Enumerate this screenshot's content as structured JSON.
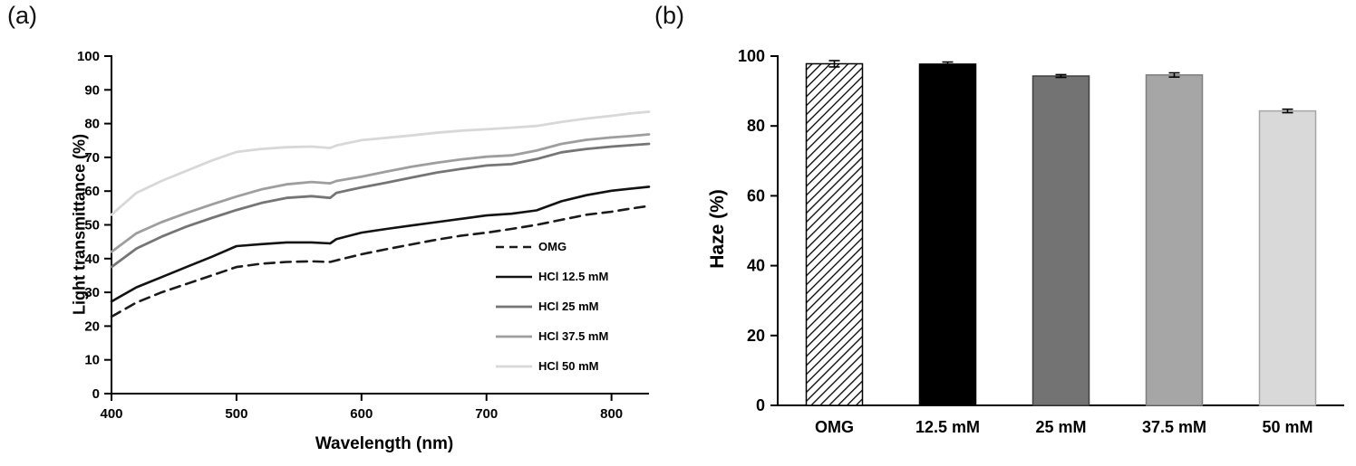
{
  "panels": {
    "a": {
      "label": "(a)"
    },
    "b": {
      "label": "(b)"
    }
  },
  "chart_data": [
    {
      "type": "line",
      "title": "",
      "xlabel": "Wavelength (nm)",
      "ylabel": "Light transmittance (%)",
      "xlim": [
        400,
        830
      ],
      "ylim": [
        0,
        100
      ],
      "xticks": [
        400,
        500,
        600,
        700,
        800
      ],
      "yticks": [
        0,
        10,
        20,
        30,
        40,
        50,
        60,
        70,
        80,
        90,
        100
      ],
      "grid": false,
      "legend_position": "inside lower right",
      "x": [
        400,
        420,
        440,
        460,
        480,
        500,
        520,
        540,
        560,
        575,
        580,
        600,
        620,
        640,
        660,
        680,
        700,
        720,
        740,
        760,
        780,
        800,
        815,
        830
      ],
      "series": [
        {
          "name": "OMG",
          "color": "#1a1a1a",
          "dashed": true,
          "width": 2.6,
          "values": [
            22.8,
            27,
            30,
            32.5,
            35,
            37.5,
            38.5,
            39,
            39.2,
            39,
            39.5,
            41.3,
            42.8,
            44.2,
            45.6,
            46.8,
            47.7,
            48.8,
            50,
            51.5,
            53,
            53.9,
            54.8,
            55.6
          ]
        },
        {
          "name": "HCl 12.5 mM",
          "color": "#121212",
          "dashed": false,
          "width": 2.6,
          "values": [
            27.3,
            31.5,
            34.5,
            37.5,
            40.5,
            43.7,
            44.3,
            44.8,
            44.8,
            44.5,
            45.8,
            47.7,
            48.8,
            49.8,
            50.8,
            51.8,
            52.8,
            53.3,
            54.3,
            57,
            58.8,
            60.1,
            60.7,
            61.3
          ]
        },
        {
          "name": "HCl 25 mM",
          "color": "#757575",
          "dashed": false,
          "width": 2.8,
          "values": [
            37.5,
            43,
            46.5,
            49.5,
            52,
            54.4,
            56.5,
            58,
            58.5,
            58,
            59.5,
            61.1,
            62.5,
            64,
            65.5,
            66.6,
            67.6,
            68,
            69.5,
            71.5,
            72.5,
            73.2,
            73.6,
            74
          ]
        },
        {
          "name": "HCl 37.5 mM",
          "color": "#9e9e9e",
          "dashed": false,
          "width": 2.8,
          "values": [
            42,
            47.5,
            50.8,
            53.5,
            56,
            58.4,
            60.5,
            62,
            62.7,
            62.3,
            63,
            64.3,
            65.8,
            67.2,
            68.4,
            69.4,
            70.2,
            70.6,
            72,
            74,
            75.2,
            75.9,
            76.3,
            76.8
          ]
        },
        {
          "name": "HCl 50 mM",
          "color": "#d8d8d8",
          "dashed": false,
          "width": 2.8,
          "values": [
            53,
            59.5,
            63,
            66,
            69,
            71.6,
            72.5,
            73,
            73.2,
            72.8,
            73.5,
            75.1,
            75.8,
            76.5,
            77.3,
            77.9,
            78.3,
            78.8,
            79.3,
            80.5,
            81.5,
            82.3,
            83,
            83.5
          ]
        }
      ]
    },
    {
      "type": "bar",
      "title": "",
      "xlabel": "",
      "ylabel": "Haze (%)",
      "ylim": [
        0,
        100
      ],
      "yticks": [
        0,
        20,
        40,
        60,
        80,
        100
      ],
      "grid": false,
      "categories": [
        "OMG",
        "12.5 mM",
        "25 mM",
        "37.5 mM",
        "50 mM"
      ],
      "values": [
        97.8,
        97.7,
        94.3,
        94.6,
        84.3
      ],
      "errors": [
        0.9,
        0.6,
        0.4,
        0.6,
        0.5
      ],
      "bar_styles": [
        {
          "fill": "hatch",
          "stroke": "#000000"
        },
        {
          "fill": "#000000",
          "stroke": "#000000"
        },
        {
          "fill": "#737373",
          "stroke": "#404040"
        },
        {
          "fill": "#a6a6a6",
          "stroke": "#7f7f7f"
        },
        {
          "fill": "#d9d9d9",
          "stroke": "#a6a6a6"
        }
      ]
    }
  ]
}
